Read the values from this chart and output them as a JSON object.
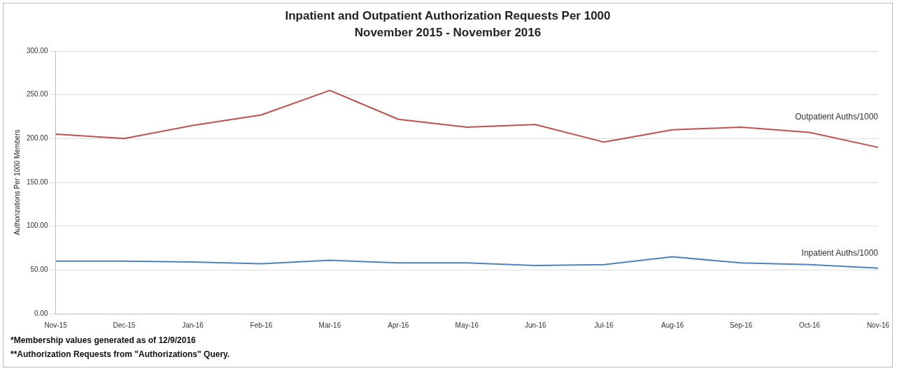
{
  "chart_data": {
    "type": "line",
    "title": "Inpatient and Outpatient Authorization Requests Per 1000",
    "subtitle": "November 2015 - November 2016",
    "ylabel": "Authorizations Per 1000 Members",
    "categories": [
      "Nov-15",
      "Dec-15",
      "Jan-16",
      "Feb-16",
      "Mar-16",
      "Apr-16",
      "May-16",
      "Jun-16",
      "Jul-16",
      "Aug-16",
      "Sep-16",
      "Oct-16",
      "Nov-16"
    ],
    "series": [
      {
        "name": "Outpatient Auths/1000",
        "color": "#c0504d",
        "values": [
          205,
          200,
          215,
          227,
          255,
          222,
          213,
          216,
          196,
          210,
          213,
          207,
          190
        ]
      },
      {
        "name": "Inpatient Auths/1000",
        "color": "#4f81bd",
        "values": [
          60,
          60,
          59,
          57,
          61,
          58,
          58,
          55,
          56,
          65,
          58,
          56,
          52
        ]
      }
    ],
    "ylim": [
      0,
      300
    ],
    "yticks": [
      {
        "value": 0,
        "label": "0.00"
      },
      {
        "value": 50,
        "label": "50.00"
      },
      {
        "value": 100,
        "label": "100.00"
      },
      {
        "value": 150,
        "label": "150.00"
      },
      {
        "value": 200,
        "label": "200.00"
      },
      {
        "value": 250,
        "label": "250.00"
      },
      {
        "value": 300,
        "label": "300.00"
      }
    ],
    "grid": "y",
    "legend": false,
    "marker": "none",
    "line_style": "solid",
    "annotations": [
      "*Membership values generated as of 12/9/2016",
      "**Authorization Requests from \"Authorizations\" Query."
    ]
  }
}
